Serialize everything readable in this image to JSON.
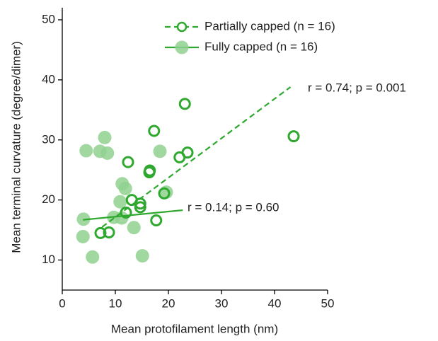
{
  "chart_data": {
    "type": "scatter",
    "x_label": "Mean protofilament length (nm)",
    "y_label": "Mean terminal curvature (degree/dimer)",
    "xlim": [
      0,
      50
    ],
    "ylim": [
      5,
      52
    ],
    "xticks": [
      0,
      10,
      20,
      30,
      40,
      50
    ],
    "yticks": [
      10,
      20,
      30,
      40,
      50
    ],
    "series": [
      {
        "name": "Partially capped (n = 16)",
        "color": "#2ea82e",
        "marker": "open",
        "fit_style": "dashed",
        "x": [
          43.6,
          23.1,
          17.3,
          23.6,
          22.1,
          12.4,
          16.5,
          16.4,
          19.2,
          13.1,
          14.7,
          14.7,
          12.0,
          17.7,
          7.2,
          8.8
        ],
        "values": [
          30.6,
          36.0,
          31.5,
          27.9,
          27.1,
          26.3,
          24.9,
          24.6,
          21.1,
          20.0,
          19.4,
          18.8,
          17.9,
          16.6,
          14.5,
          14.6
        ],
        "fit": {
          "x": [
            7.5,
            43.0
          ],
          "y": [
            15.5,
            38.8
          ]
        }
      },
      {
        "name": "Fully capped (n = 16)",
        "color": "#8fd18f",
        "marker": "filled",
        "fit_style": "solid",
        "x": [
          4.5,
          8.0,
          7.1,
          8.5,
          18.4,
          11.3,
          11.9,
          19.6,
          10.9,
          9.7,
          11.2,
          13.5,
          4.0,
          3.9,
          5.7,
          15.1
        ],
        "values": [
          28.2,
          30.4,
          28.1,
          27.8,
          28.1,
          22.7,
          21.9,
          21.3,
          19.7,
          17.1,
          17.0,
          15.4,
          16.8,
          13.9,
          10.5,
          10.7
        ],
        "fit": {
          "x": [
            3.9,
            22.7
          ],
          "y": [
            16.7,
            18.3
          ]
        }
      }
    ],
    "annotations": [
      "r = 0.74; p = 0.001",
      "r = 0.14; p = 0.60"
    ]
  }
}
